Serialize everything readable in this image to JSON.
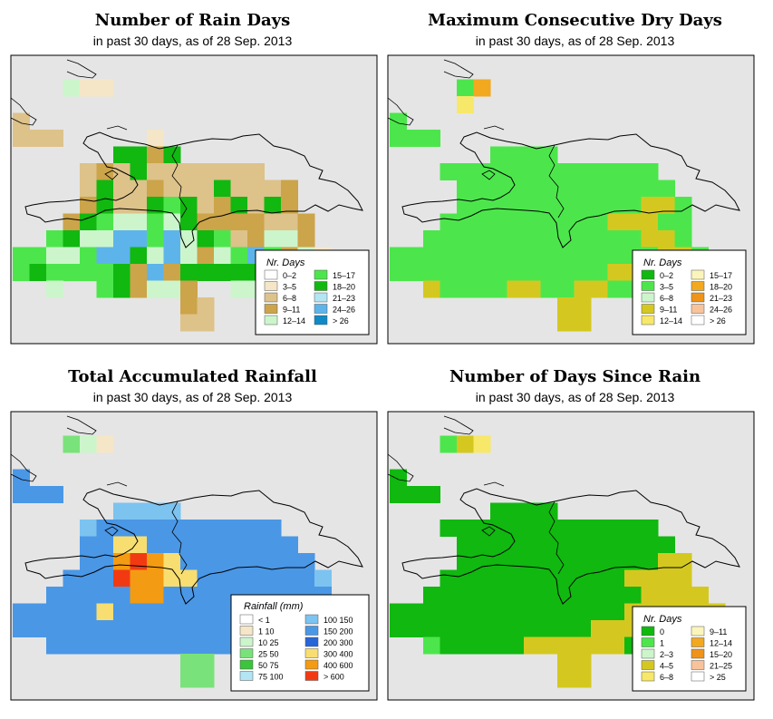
{
  "panels": [
    {
      "id": "rain-days",
      "title": "Number of Rain Days",
      "subtitle": "in past 30 days, as of  28 Sep. 2013",
      "legend_title": "Nr. Days",
      "legend": [
        {
          "label": "0–2",
          "color": "#ffffff"
        },
        {
          "label": "3–5",
          "color": "#f5e6c8"
        },
        {
          "label": "6–8",
          "color": "#ddc28a"
        },
        {
          "label": "9–11",
          "color": "#cca449"
        },
        {
          "label": "12–14",
          "color": "#ccf5cc"
        },
        {
          "label": "15–17",
          "color": "#4ce64c"
        },
        {
          "label": "18–20",
          "color": "#10b810"
        },
        {
          "label": "21–23",
          "color": "#b3e5f3"
        },
        {
          "label": "24–26",
          "color": "#5db4ea"
        },
        {
          "label": "> 26",
          "color": "#0f8ac6"
        }
      ]
    },
    {
      "id": "dry-days",
      "title": "Maximum Consecutive Dry Days",
      "subtitle": "in past 30 days, as of  28 Sep. 2013",
      "legend_title": "Nr. Days",
      "legend": [
        {
          "label": "0–2",
          "color": "#10b810"
        },
        {
          "label": "3–5",
          "color": "#4ce64c"
        },
        {
          "label": "6–8",
          "color": "#ccf5cc"
        },
        {
          "label": "9–11",
          "color": "#d4c820"
        },
        {
          "label": "12–14",
          "color": "#f7e86a"
        },
        {
          "label": "15–17",
          "color": "#fbf5bc"
        },
        {
          "label": "18–20",
          "color": "#f2a81f"
        },
        {
          "label": "21–23",
          "color": "#ef9418"
        },
        {
          "label": "24–26",
          "color": "#f8c39b"
        },
        {
          "label": "> 26",
          "color": "#ffffff"
        }
      ]
    },
    {
      "id": "total-rainfall",
      "title": "Total Accumulated Rainfall",
      "subtitle": "in past 30 days, as of  28 Sep. 2013",
      "legend_title": "Rainfall (mm)",
      "legend": [
        {
          "label": "< 1",
          "color": "#ffffff"
        },
        {
          "label": "1  10",
          "color": "#f5e6c8"
        },
        {
          "label": "10  25",
          "color": "#ccf5cc"
        },
        {
          "label": "25  50",
          "color": "#7ae27a"
        },
        {
          "label": "50  75",
          "color": "#3cc43c"
        },
        {
          "label": "75  100",
          "color": "#b3e5f3"
        },
        {
          "label": "100  150",
          "color": "#7cc3f0"
        },
        {
          "label": "150  200",
          "color": "#4a97e6"
        },
        {
          "label": "200  300",
          "color": "#2666d9"
        },
        {
          "label": "300  400",
          "color": "#f8de70"
        },
        {
          "label": "400  600",
          "color": "#f39b12"
        },
        {
          "label": "> 600",
          "color": "#f23a12"
        }
      ]
    },
    {
      "id": "days-since-rain",
      "title": "Number of Days Since Rain",
      "subtitle": "in past 30 days, as of  28 Sep. 2013",
      "legend_title": "Nr. Days",
      "legend": [
        {
          "label": "0",
          "color": "#10b810"
        },
        {
          "label": "1",
          "color": "#4ce64c"
        },
        {
          "label": "2–3",
          "color": "#ccf5cc"
        },
        {
          "label": "4–5",
          "color": "#d4c820"
        },
        {
          "label": "6–8",
          "color": "#f7e86a"
        },
        {
          "label": "9–11",
          "color": "#fbf5bc"
        },
        {
          "label": "12–14",
          "color": "#f2a81f"
        },
        {
          "label": "15–20",
          "color": "#ef9418"
        },
        {
          "label": "21–25",
          "color": "#f8c39b"
        },
        {
          "label": "> 25",
          "color": "#ffffff"
        }
      ]
    }
  ],
  "colors": {
    "map_background": "#e5e5e5",
    "frame": "#000000",
    "coastline": "#000000"
  }
}
